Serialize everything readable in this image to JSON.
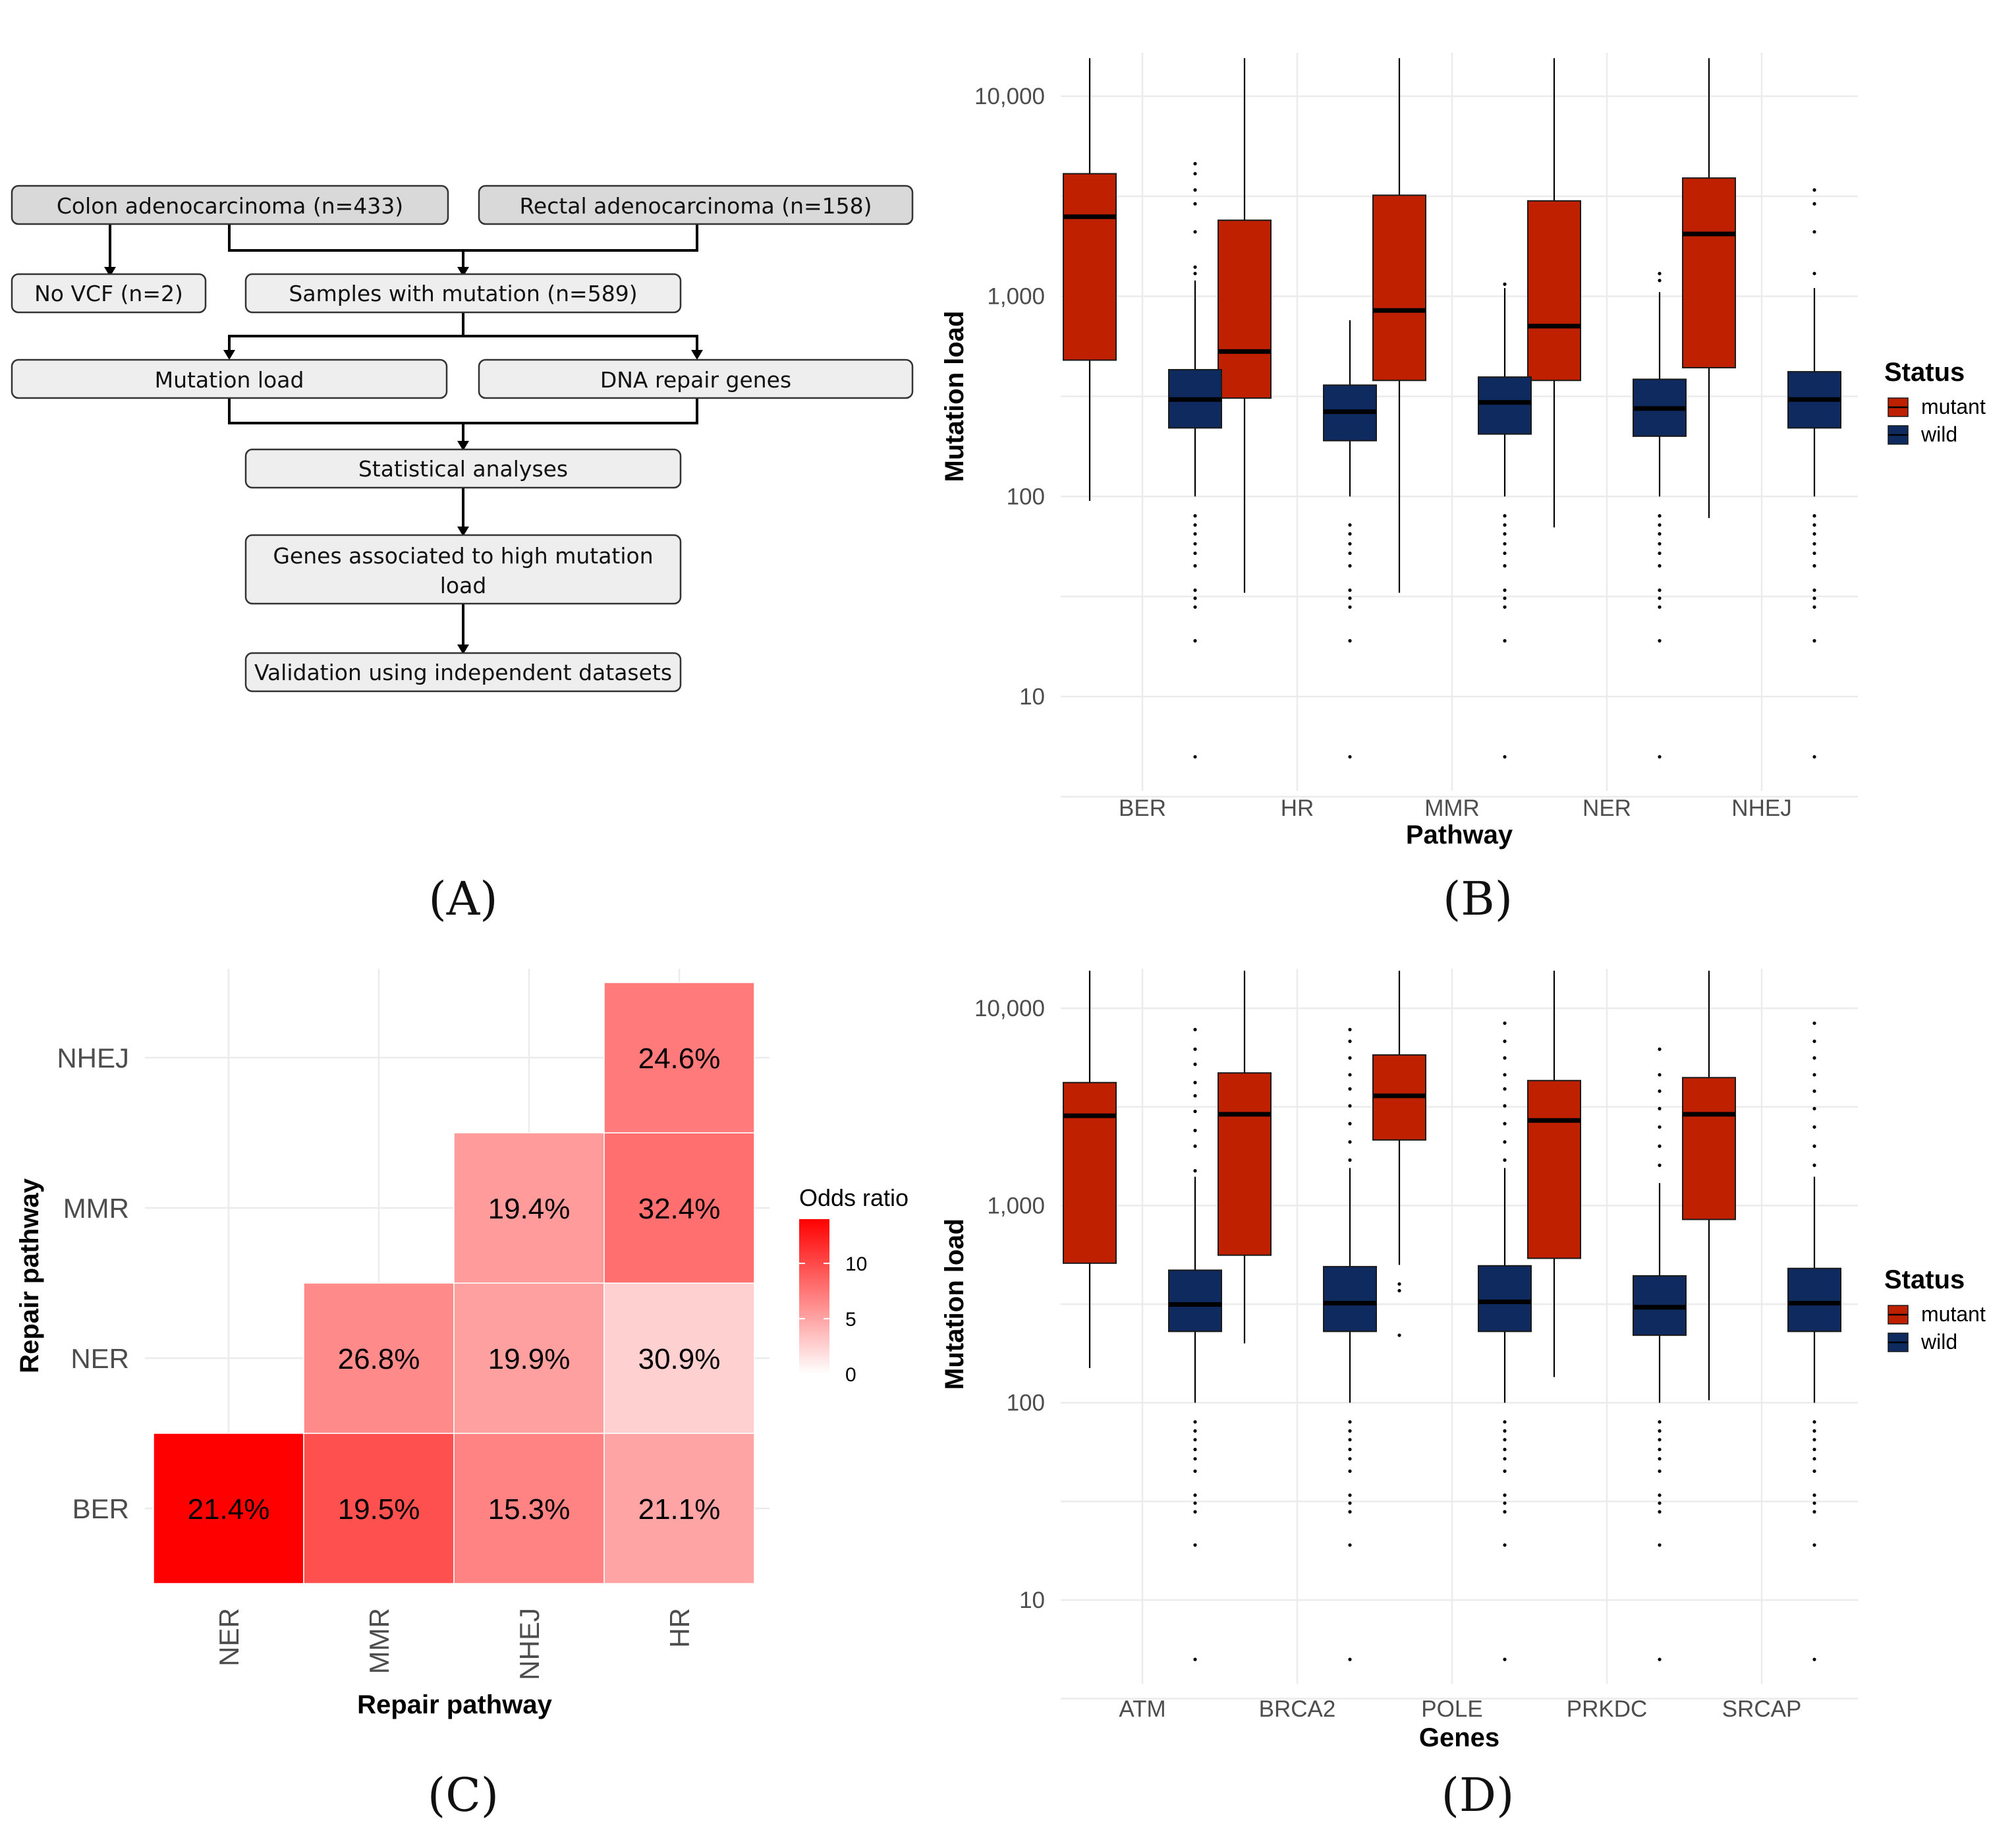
{
  "panels": {
    "a": "(A)",
    "b": "(B)",
    "c": "(C)",
    "d": "(D)"
  },
  "flowchart": {
    "colon": "Colon adenocarcinoma (n=433)",
    "rectal": "Rectal adenocarcinoma (n=158)",
    "novcf": "No VCF (n=2)",
    "samples": "Samples with mutation (n=589)",
    "mutload": "Mutation load",
    "dnarepair": "DNA repair genes",
    "stats": "Statistical analyses",
    "genes_line1": "Genes associated to high mutation",
    "genes_line2": "load",
    "validation": "Validation using independent datasets"
  },
  "chart_data": [
    {
      "id": "B",
      "type": "boxplot",
      "scale": "log10",
      "xlabel": "Pathway",
      "ylabel": "Mutation load",
      "yticks": [
        10,
        100,
        1000,
        10000
      ],
      "ytick_labels": [
        "10",
        "100",
        "1,000",
        "10,000"
      ],
      "ylim": [
        3.5,
        17000
      ],
      "legend_title": "Status",
      "legend_entries": [
        "mutant",
        "wild"
      ],
      "colors": {
        "mutant": "#bf2000",
        "wild": "#0e2a5e"
      },
      "categories": [
        "BER",
        "HR",
        "MMR",
        "NER",
        "NHEJ"
      ],
      "mutant": [
        {
          "min": 95,
          "q1": 480,
          "median": 2500,
          "q3": 4100,
          "max": 15500
        },
        {
          "min": 33,
          "q1": 310,
          "median": 530,
          "q3": 2400,
          "max": 15500
        },
        {
          "min": 33,
          "q1": 380,
          "median": 850,
          "q3": 3200,
          "max": 15500
        },
        {
          "min": 70,
          "q1": 380,
          "median": 710,
          "q3": 3000,
          "max": 15500
        },
        {
          "min": 78,
          "q1": 440,
          "median": 2050,
          "q3": 3900,
          "max": 15500
        }
      ],
      "wild": [
        {
          "min": 100,
          "q1": 220,
          "median": 305,
          "q3": 430,
          "max": 1200,
          "outliers": [
            5,
            19,
            28,
            31,
            34,
            45,
            52,
            58,
            65,
            72,
            80,
            1300,
            1400,
            2100,
            2900,
            3400,
            4100,
            4600
          ]
        },
        {
          "min": 100,
          "q1": 190,
          "median": 265,
          "q3": 360,
          "max": 760,
          "outliers": [
            5,
            19,
            28,
            31,
            34,
            45,
            52,
            58,
            65,
            72
          ]
        },
        {
          "min": 100,
          "q1": 205,
          "median": 295,
          "q3": 395,
          "max": 1100,
          "outliers": [
            5,
            19,
            28,
            31,
            34,
            45,
            52,
            58,
            65,
            72,
            80,
            1150
          ]
        },
        {
          "min": 100,
          "q1": 200,
          "median": 275,
          "q3": 385,
          "max": 1050,
          "outliers": [
            5,
            19,
            28,
            31,
            34,
            45,
            52,
            58,
            65,
            72,
            80,
            1200,
            1300
          ]
        },
        {
          "min": 100,
          "q1": 220,
          "median": 305,
          "q3": 420,
          "max": 1100,
          "outliers": [
            5,
            19,
            28,
            31,
            34,
            45,
            52,
            58,
            65,
            72,
            80,
            1300,
            2100,
            2900,
            3400
          ]
        }
      ]
    },
    {
      "id": "C",
      "type": "heatmap",
      "xlabel": "Repair pathway",
      "ylabel": "Repair pathway",
      "x_categories": [
        "NER",
        "MMR",
        "NHEJ",
        "HR"
      ],
      "y_categories": [
        "BER",
        "NER",
        "MMR",
        "NHEJ"
      ],
      "legend_title": "Odds ratio",
      "legend_ticks": [
        0,
        5,
        10
      ],
      "legend_max": 14,
      "cells": [
        {
          "x": "NER",
          "y": "BER",
          "value": 14.5,
          "label": "21.4%"
        },
        {
          "x": "MMR",
          "y": "BER",
          "value": 9.6,
          "label": "19.5%"
        },
        {
          "x": "NHEJ",
          "y": "BER",
          "value": 6.8,
          "label": "15.3%"
        },
        {
          "x": "HR",
          "y": "BER",
          "value": 5.0,
          "label": "21.1%"
        },
        {
          "x": "MMR",
          "y": "NER",
          "value": 6.4,
          "label": "26.8%"
        },
        {
          "x": "NHEJ",
          "y": "NER",
          "value": 5.2,
          "label": "19.9%"
        },
        {
          "x": "HR",
          "y": "NER",
          "value": 2.6,
          "label": "30.9%"
        },
        {
          "x": "NHEJ",
          "y": "MMR",
          "value": 5.5,
          "label": "19.4%"
        },
        {
          "x": "HR",
          "y": "MMR",
          "value": 7.9,
          "label": "32.4%"
        },
        {
          "x": "HR",
          "y": "NHEJ",
          "value": 7.3,
          "label": "24.6%"
        }
      ]
    },
    {
      "id": "D",
      "type": "boxplot",
      "scale": "log10",
      "xlabel": "Genes",
      "ylabel": "Mutation load",
      "yticks": [
        10,
        100,
        1000,
        10000
      ],
      "ytick_labels": [
        "10",
        "100",
        "1,000",
        "10,000"
      ],
      "ylim": [
        3.5,
        17000
      ],
      "legend_title": "Status",
      "legend_entries": [
        "mutant",
        "wild"
      ],
      "colors": {
        "mutant": "#bf2000",
        "wild": "#0e2a5e"
      },
      "categories": [
        "ATM",
        "BRCA2",
        "POLE",
        "PRKDC",
        "SRCAP"
      ],
      "mutant": [
        {
          "min": 150,
          "q1": 510,
          "median": 2850,
          "q3": 4200,
          "max": 15500
        },
        {
          "min": 200,
          "q1": 560,
          "median": 2900,
          "q3": 4700,
          "max": 15500
        },
        {
          "min": 500,
          "q1": 2150,
          "median": 3600,
          "q3": 5800,
          "max": 15500,
          "outliers": [
            220,
            370,
            400
          ]
        },
        {
          "min": 135,
          "q1": 540,
          "median": 2700,
          "q3": 4300,
          "max": 15500
        },
        {
          "min": 103,
          "q1": 850,
          "median": 2900,
          "q3": 4450,
          "max": 15500
        }
      ],
      "wild": [
        {
          "min": 100,
          "q1": 230,
          "median": 315,
          "q3": 470,
          "max": 1400,
          "outliers": [
            5,
            19,
            28,
            31,
            34,
            45,
            52,
            58,
            65,
            72,
            80,
            1500,
            2000,
            2400,
            3000,
            3600,
            4200,
            5200,
            6200,
            7800
          ]
        },
        {
          "min": 100,
          "q1": 230,
          "median": 320,
          "q3": 490,
          "max": 1550,
          "outliers": [
            5,
            19,
            28,
            31,
            34,
            45,
            52,
            58,
            65,
            72,
            80,
            1700,
            2100,
            2600,
            3200,
            3900,
            4600,
            5600,
            6800,
            7800
          ]
        },
        {
          "min": 100,
          "q1": 230,
          "median": 325,
          "q3": 495,
          "max": 1550,
          "outliers": [
            5,
            19,
            28,
            31,
            34,
            45,
            52,
            58,
            65,
            72,
            80,
            1700,
            2100,
            2600,
            3200,
            3900,
            4600,
            5600,
            6800,
            8400
          ]
        },
        {
          "min": 100,
          "q1": 220,
          "median": 305,
          "q3": 440,
          "max": 1300,
          "outliers": [
            5,
            19,
            28,
            31,
            34,
            45,
            52,
            58,
            65,
            72,
            80,
            1600,
            2000,
            2500,
            3100,
            3800,
            4600,
            6200
          ]
        },
        {
          "min": 100,
          "q1": 230,
          "median": 320,
          "q3": 480,
          "max": 1400,
          "outliers": [
            5,
            19,
            28,
            31,
            34,
            45,
            52,
            58,
            65,
            72,
            80,
            1600,
            2000,
            2500,
            3100,
            3800,
            4600,
            5600,
            6800,
            8400
          ]
        }
      ]
    }
  ]
}
